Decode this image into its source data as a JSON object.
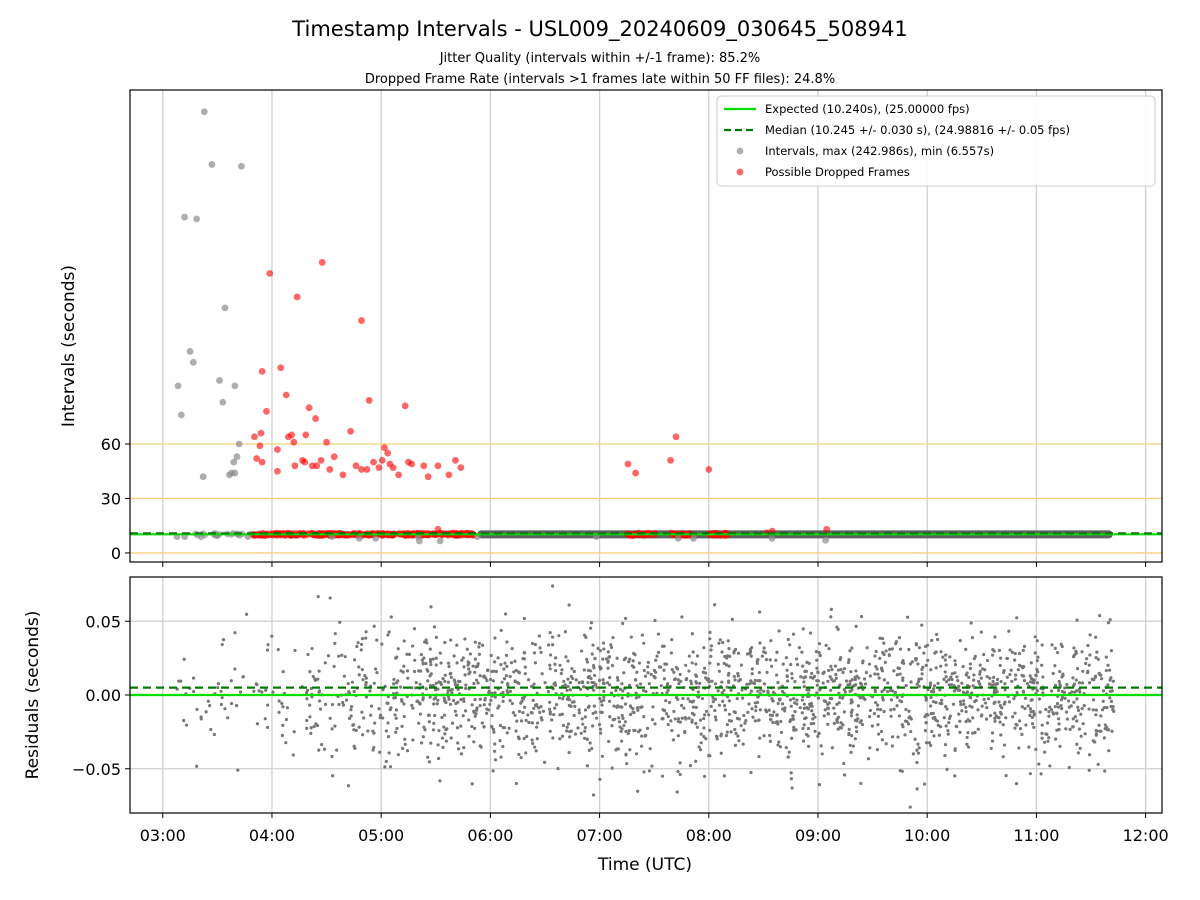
{
  "figure": {
    "title": "Timestamp Intervals - USL009_20240609_030645_508941",
    "subtitle_lines": [
      "Jitter Quality (intervals within +/-1 frame): 85.2%",
      "Dropped Frame Rate (intervals >1 frames late within 50 FF files): 24.8%"
    ]
  },
  "colors": {
    "expected": "#00e000",
    "median": "#007a00",
    "interval_points": "#8c8c8c",
    "dropped_points": "#ff0000",
    "residual_points": "#777777",
    "reference_lines": "#f5d27a",
    "grid": "#cfcfcf"
  },
  "chart_data": [
    {
      "id": "intervals",
      "type": "scatter",
      "ylabel": "Intervals (seconds)",
      "x_unit": "hours UTC",
      "xlim": [
        2.7,
        12.15
      ],
      "ylim": [
        -5,
        255
      ],
      "xticks": [
        3,
        4,
        5,
        6,
        7,
        8,
        9,
        10,
        11,
        12
      ],
      "xtick_labels": [
        "03:00",
        "04:00",
        "05:00",
        "06:00",
        "07:00",
        "08:00",
        "09:00",
        "10:00",
        "11:00",
        "12:00"
      ],
      "yticks": [
        0,
        30,
        60
      ],
      "ytick_labels": [
        "0",
        "30",
        "60"
      ],
      "grid": "vertical",
      "horizontal_reference_lines": [
        0,
        30,
        60
      ],
      "legend_position": "top-right",
      "expected_value": 10.24,
      "median_value": 10.245,
      "series": [
        {
          "name": "Expected (10.240s), (25.00000 fps)",
          "kind": "line-solid",
          "y": 10.24
        },
        {
          "name": "Median (10.245 +/- 0.030 s), (24.98816 +/- 0.05 fps)",
          "kind": "line-dashed",
          "y": 10.245
        },
        {
          "name": "Intervals, max (242.986s), min (6.557s)",
          "kind": "scatter",
          "baseline_x_range": [
            3.12,
            11.7
          ],
          "baseline_y": 10.24,
          "points": [
            [
              3.38,
              243
            ],
            [
              3.45,
              214
            ],
            [
              3.72,
              213
            ],
            [
              3.2,
              185
            ],
            [
              3.31,
              184
            ],
            [
              3.57,
              135
            ],
            [
              3.25,
              111
            ],
            [
              3.28,
              105
            ],
            [
              3.14,
              92
            ],
            [
              3.52,
              95
            ],
            [
              3.66,
              92
            ],
            [
              3.17,
              76
            ],
            [
              3.55,
              83
            ],
            [
              3.7,
              60
            ],
            [
              3.68,
              53
            ],
            [
              3.65,
              50
            ],
            [
              3.66,
              44
            ],
            [
              3.63,
              44
            ],
            [
              3.61,
              43
            ],
            [
              3.37,
              42
            ],
            [
              3.13,
              9
            ],
            [
              3.2,
              9
            ],
            [
              3.35,
              9
            ],
            [
              3.5,
              9.5
            ],
            [
              3.78,
              9
            ],
            [
              4.55,
              9
            ],
            [
              4.8,
              8
            ],
            [
              4.95,
              8
            ],
            [
              5.34,
              9
            ],
            [
              5.35,
              6.6
            ],
            [
              5.54,
              6.6
            ],
            [
              5.88,
              9
            ],
            [
              6.97,
              9
            ],
            [
              7.72,
              8
            ],
            [
              7.86,
              8
            ],
            [
              8.58,
              8
            ],
            [
              9.07,
              7
            ]
          ]
        },
        {
          "name": "Possible Dropped Frames",
          "kind": "scatter",
          "points": [
            [
              4.46,
              160
            ],
            [
              3.98,
              154
            ],
            [
              4.23,
              141
            ],
            [
              4.82,
              128
            ],
            [
              4.08,
              102
            ],
            [
              3.91,
              100
            ],
            [
              4.13,
              87
            ],
            [
              4.89,
              84
            ],
            [
              5.22,
              81
            ],
            [
              3.95,
              78
            ],
            [
              4.34,
              80
            ],
            [
              4.4,
              74
            ],
            [
              4.18,
              65
            ],
            [
              4.31,
              65
            ],
            [
              4.15,
              64
            ],
            [
              3.84,
              64
            ],
            [
              3.9,
              66
            ],
            [
              4.72,
              67
            ],
            [
              3.89,
              59
            ],
            [
              4.2,
              61
            ],
            [
              4.28,
              51
            ],
            [
              4.5,
              61
            ],
            [
              4.05,
              57
            ],
            [
              5.03,
              58
            ],
            [
              5.06,
              55
            ],
            [
              3.86,
              52
            ],
            [
              4.3,
              50
            ],
            [
              4.45,
              51
            ],
            [
              4.41,
              48
            ],
            [
              4.37,
              48
            ],
            [
              4.21,
              48
            ],
            [
              4.57,
              53
            ],
            [
              4.77,
              48
            ],
            [
              4.53,
              46
            ],
            [
              4.82,
              46
            ],
            [
              4.87,
              46
            ],
            [
              4.93,
              50
            ],
            [
              4.98,
              47
            ],
            [
              5.01,
              51
            ],
            [
              5.08,
              49
            ],
            [
              5.11,
              47
            ],
            [
              5.16,
              43
            ],
            [
              5.25,
              50
            ],
            [
              5.39,
              48
            ],
            [
              5.28,
              49
            ],
            [
              5.43,
              42
            ],
            [
              5.52,
              48
            ],
            [
              5.68,
              51
            ],
            [
              5.73,
              47
            ],
            [
              5.62,
              43
            ],
            [
              4.05,
              45
            ],
            [
              4.65,
              43
            ],
            [
              3.91,
              50
            ],
            [
              7.26,
              49
            ],
            [
              7.33,
              44
            ],
            [
              7.7,
              64
            ],
            [
              7.65,
              51
            ],
            [
              8.0,
              46
            ],
            [
              8.53,
              11
            ],
            [
              8.58,
              12
            ],
            [
              9.08,
              13
            ],
            [
              5.52,
              13
            ]
          ],
          "dense_clusters": [
            {
              "x_range": [
                3.83,
                5.85
              ],
              "y": 10.24
            },
            {
              "x_range": [
                7.25,
                7.52
              ],
              "y": 10.24
            },
            {
              "x_range": [
                7.65,
                7.85
              ],
              "y": 10.24
            },
            {
              "x_range": [
                8.0,
                8.18
              ],
              "y": 10.24
            }
          ]
        }
      ]
    },
    {
      "id": "residuals",
      "type": "scatter",
      "xlabel": "Time (UTC)",
      "ylabel": "Residuals (seconds)",
      "xlim": [
        2.7,
        12.15
      ],
      "ylim": [
        -0.08,
        0.08
      ],
      "xticks": [
        3,
        4,
        5,
        6,
        7,
        8,
        9,
        10,
        11,
        12
      ],
      "xtick_labels": [
        "03:00",
        "04:00",
        "05:00",
        "06:00",
        "07:00",
        "08:00",
        "09:00",
        "10:00",
        "11:00",
        "12:00"
      ],
      "yticks": [
        0.05,
        0.0,
        -0.05
      ],
      "ytick_labels": [
        "0.05",
        "0.00",
        "−0.05"
      ],
      "grid": "both",
      "zero_line": 0.0,
      "median_line": 0.005,
      "residual_std": 0.022,
      "residual_x_range": [
        3.12,
        11.72
      ]
    }
  ]
}
